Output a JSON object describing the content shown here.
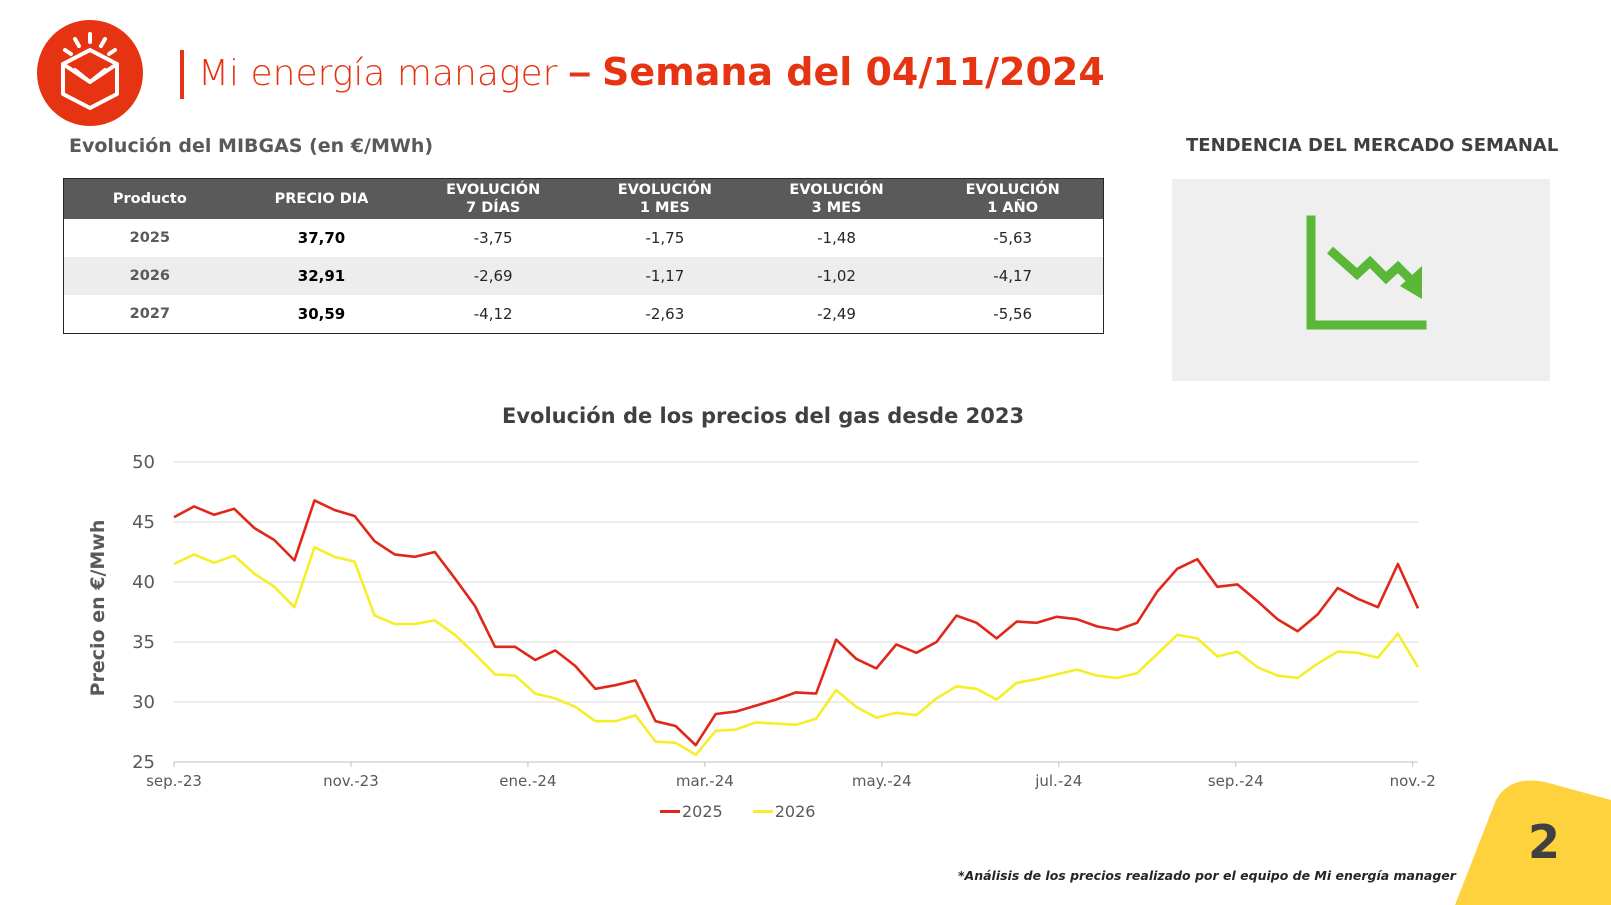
{
  "header": {
    "title_light": "Mi energía manager",
    "title_dash": " – ",
    "title_bold": "Semana del 04/11/2024"
  },
  "section_left": "Evolución del MIBGAS (en €/MWh)",
  "section_right": "TENDENCIA DEL MERCADO SEMANAL",
  "table": {
    "headers": [
      "Producto",
      "PRECIO DIA",
      "EVOLUCIÓN\n7 DÍAS",
      "EVOLUCIÓN\n1 MES",
      "EVOLUCIÓN\n3 MES",
      "EVOLUCIÓN\n1 AÑO"
    ],
    "rows": [
      [
        "2025",
        "37,70",
        "-3,75",
        "-1,75",
        "-1,48",
        "-5,63"
      ],
      [
        "2026",
        "32,91",
        "-2,69",
        "-1,17",
        "-1,02",
        "-4,17"
      ],
      [
        "2027",
        "30,59",
        "-4,12",
        "-2,63",
        "-2,49",
        "-5,56"
      ]
    ]
  },
  "trend_icon": "downtrend-chart-icon",
  "colors": {
    "brand_red": "#e63312",
    "trend_green": "#5ab738",
    "series_2025": "#e0281a",
    "series_2026": "#f5ef2a",
    "corner_yellow": "#fdd23c"
  },
  "chart_title": "Evolución de los precios del gas desde 2023",
  "chart_data": {
    "type": "line",
    "title": "Evolución de los precios del gas desde 2023",
    "ylabel": "Precio en €/Mwh",
    "xlabel": "",
    "ylim": [
      25,
      50
    ],
    "yticks": [
      25,
      30,
      35,
      40,
      45,
      50
    ],
    "xtick_labels": [
      "sep.-23",
      "nov.-23",
      "ene.-24",
      "mar.-24",
      "may.-24",
      "jul.-24",
      "sep.-24",
      "nov.-2"
    ],
    "grid": true,
    "legend": "bottom",
    "series": [
      {
        "name": "2025",
        "values": [
          45.4,
          46.3,
          45.6,
          46.1,
          44.5,
          43.5,
          41.8,
          46.8,
          46.0,
          45.5,
          43.4,
          42.3,
          42.1,
          42.5,
          40.3,
          38.0,
          34.6,
          34.6,
          33.5,
          34.3,
          33.0,
          31.1,
          31.4,
          31.8,
          28.4,
          28.0,
          26.4,
          29.0,
          29.2,
          29.7,
          30.2,
          30.8,
          30.7,
          35.2,
          33.6,
          32.8,
          34.8,
          34.1,
          35.0,
          37.2,
          36.6,
          35.3,
          36.7,
          36.6,
          37.1,
          36.9,
          36.3,
          36.0,
          36.6,
          39.2,
          41.1,
          41.9,
          39.6,
          39.8,
          38.4,
          36.9,
          35.9,
          37.3,
          39.5,
          38.6,
          37.9,
          41.5,
          37.8
        ]
      },
      {
        "name": "2026",
        "values": [
          41.5,
          42.3,
          41.6,
          42.2,
          40.7,
          39.6,
          37.9,
          42.9,
          42.1,
          41.7,
          37.2,
          36.5,
          36.5,
          36.8,
          35.6,
          34.0,
          32.3,
          32.2,
          30.7,
          30.3,
          29.6,
          28.4,
          28.4,
          28.9,
          26.7,
          26.6,
          25.6,
          27.6,
          27.7,
          28.3,
          28.2,
          28.1,
          28.6,
          31.0,
          29.6,
          28.7,
          29.1,
          28.9,
          30.3,
          31.3,
          31.1,
          30.2,
          31.6,
          31.9,
          32.3,
          32.7,
          32.2,
          32.0,
          32.4,
          34.0,
          35.6,
          35.3,
          33.8,
          34.2,
          32.9,
          32.2,
          32.0,
          33.2,
          34.2,
          34.1,
          33.7,
          35.7,
          32.9
        ]
      }
    ]
  },
  "legend": {
    "items": [
      "2025",
      "2026"
    ]
  },
  "footnote": "*Análisis de los precios realizado por el equipo de Mi energía manager",
  "page_number": "2"
}
